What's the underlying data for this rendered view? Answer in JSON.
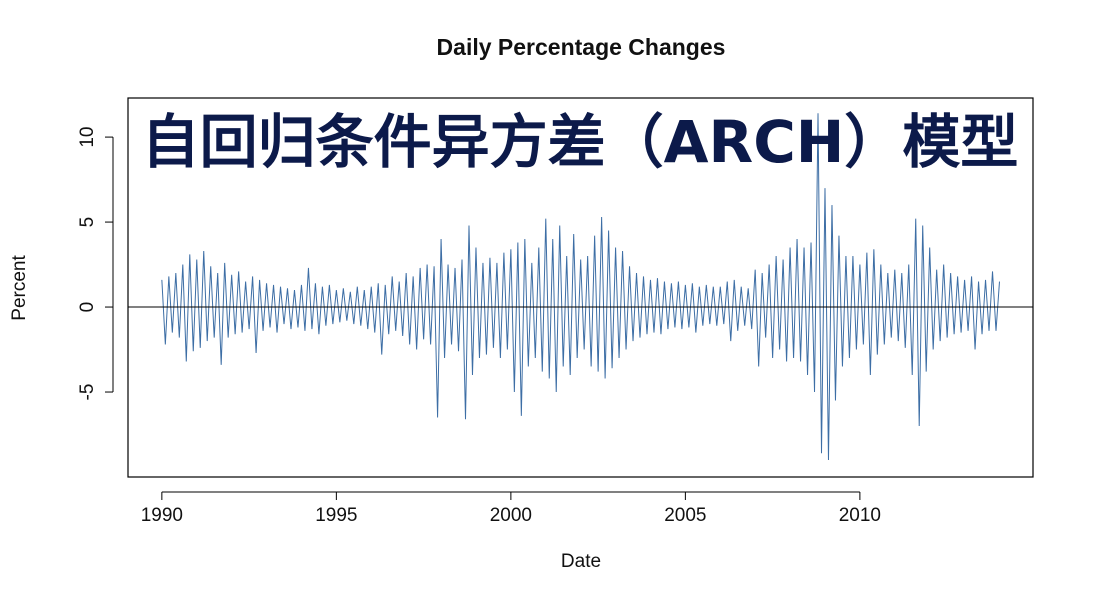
{
  "chart_data": {
    "type": "line",
    "title": "Daily Percentage Changes",
    "overlay_title": "自回归条件异方差（ARCH）模型",
    "x_label": "Date",
    "y_label": "Percent",
    "xlim": [
      1989.03,
      2014.96
    ],
    "ylim": [
      -10,
      12.3
    ],
    "xticks": [
      1990,
      1995,
      2000,
      2005,
      2010
    ],
    "yticks": [
      -5,
      0,
      5,
      10
    ],
    "zero_line": true,
    "series": [
      {
        "color": "#3d6ea5",
        "x": [
          1990,
          1990.1,
          1990.2,
          1990.3,
          1990.4,
          1990.5,
          1990.6,
          1990.7,
          1990.8,
          1990.9,
          1991,
          1991.1,
          1991.2,
          1991.3,
          1991.4,
          1991.5,
          1991.6,
          1991.7,
          1991.8,
          1991.9,
          1992,
          1992.1,
          1992.2,
          1992.3,
          1992.4,
          1992.5,
          1992.6,
          1992.7,
          1992.8,
          1992.9,
          1993,
          1993.1,
          1993.2,
          1993.3,
          1993.4,
          1993.5,
          1993.6,
          1993.7,
          1993.8,
          1993.9,
          1994,
          1994.1,
          1994.2,
          1994.3,
          1994.4,
          1994.5,
          1994.6,
          1994.7,
          1994.8,
          1994.9,
          1995,
          1995.1,
          1995.2,
          1995.3,
          1995.4,
          1995.5,
          1995.6,
          1995.7,
          1995.8,
          1995.9,
          1996,
          1996.1,
          1996.2,
          1996.3,
          1996.4,
          1996.5,
          1996.6,
          1996.7,
          1996.8,
          1996.9,
          1997,
          1997.1,
          1997.2,
          1997.3,
          1997.4,
          1997.5,
          1997.6,
          1997.7,
          1997.8,
          1997.9,
          1998,
          1998.1,
          1998.2,
          1998.3,
          1998.4,
          1998.5,
          1998.6,
          1998.7,
          1998.8,
          1998.9,
          1999,
          1999.1,
          1999.2,
          1999.3,
          1999.4,
          1999.5,
          1999.6,
          1999.7,
          1999.8,
          1999.9,
          2000,
          2000.1,
          2000.2,
          2000.3,
          2000.4,
          2000.5,
          2000.6,
          2000.7,
          2000.8,
          2000.9,
          2001,
          2001.1,
          2001.2,
          2001.3,
          2001.4,
          2001.5,
          2001.6,
          2001.7,
          2001.8,
          2001.9,
          2002,
          2002.1,
          2002.2,
          2002.3,
          2002.4,
          2002.5,
          2002.6,
          2002.7,
          2002.8,
          2002.9,
          2003,
          2003.1,
          2003.2,
          2003.3,
          2003.4,
          2003.5,
          2003.6,
          2003.7,
          2003.8,
          2003.9,
          2004,
          2004.1,
          2004.2,
          2004.3,
          2004.4,
          2004.5,
          2004.6,
          2004.7,
          2004.8,
          2004.9,
          2005,
          2005.1,
          2005.2,
          2005.3,
          2005.4,
          2005.5,
          2005.6,
          2005.7,
          2005.8,
          2005.9,
          2006,
          2006.1,
          2006.2,
          2006.3,
          2006.4,
          2006.5,
          2006.6,
          2006.7,
          2006.8,
          2006.9,
          2007,
          2007.1,
          2007.2,
          2007.3,
          2007.4,
          2007.5,
          2007.6,
          2007.7,
          2007.8,
          2007.9,
          2008,
          2008.1,
          2008.2,
          2008.3,
          2008.4,
          2008.5,
          2008.6,
          2008.7,
          2008.8,
          2008.9,
          2009,
          2009.1,
          2009.2,
          2009.3,
          2009.4,
          2009.5,
          2009.6,
          2009.7,
          2009.8,
          2009.9,
          2010,
          2010.1,
          2010.2,
          2010.3,
          2010.4,
          2010.5,
          2010.6,
          2010.7,
          2010.8,
          2010.9,
          2011,
          2011.1,
          2011.2,
          2011.3,
          2011.4,
          2011.5,
          2011.6,
          2011.7,
          2011.8,
          2011.9,
          2012,
          2012.1,
          2012.2,
          2012.3,
          2012.4,
          2012.5,
          2012.6,
          2012.7,
          2012.8,
          2012.9,
          2013,
          2013.1,
          2013.2,
          2013.3,
          2013.4,
          2013.5,
          2013.6,
          2013.7,
          2013.8,
          2013.9,
          2014
        ],
        "values": [
          1.6,
          -2.2,
          1.8,
          -1.5,
          2.0,
          -1.8,
          2.5,
          -3.2,
          3.1,
          -2.6,
          2.8,
          -2.4,
          3.3,
          -2.0,
          2.4,
          -1.8,
          2.0,
          -3.4,
          2.6,
          -1.8,
          1.9,
          -1.6,
          2.1,
          -1.5,
          1.5,
          -1.3,
          1.8,
          -2.7,
          1.6,
          -1.4,
          1.4,
          -1.2,
          1.3,
          -1.5,
          1.2,
          -1.0,
          1.1,
          -1.3,
          1.0,
          -1.2,
          1.3,
          -1.4,
          2.3,
          -1.3,
          1.4,
          -1.6,
          1.2,
          -1.1,
          1.3,
          -1.0,
          1.0,
          -0.9,
          1.1,
          -0.8,
          0.9,
          -1.0,
          1.2,
          -1.1,
          1.0,
          -1.3,
          1.2,
          -1.5,
          1.4,
          -2.8,
          1.3,
          -1.6,
          1.8,
          -1.4,
          1.5,
          -1.7,
          2.0,
          -2.2,
          1.8,
          -2.5,
          2.3,
          -1.9,
          2.5,
          -2.2,
          2.4,
          -6.5,
          4.0,
          -3.0,
          2.5,
          -2.2,
          2.3,
          -2.6,
          2.8,
          -6.6,
          4.8,
          -4.0,
          3.5,
          -3.0,
          2.6,
          -2.8,
          2.9,
          -2.4,
          2.6,
          -3.0,
          3.2,
          -2.5,
          3.4,
          -5.0,
          3.8,
          -6.4,
          4.0,
          -3.5,
          2.6,
          -3.0,
          3.5,
          -3.8,
          5.2,
          -4.2,
          4.0,
          -5.0,
          4.8,
          -3.5,
          3.0,
          -4.0,
          4.3,
          -3.0,
          2.8,
          -2.5,
          3.0,
          -3.5,
          4.2,
          -3.8,
          5.3,
          -4.2,
          4.5,
          -3.6,
          3.5,
          -3.0,
          3.3,
          -2.5,
          2.4,
          -2.0,
          2.0,
          -1.8,
          1.8,
          -1.6,
          1.6,
          -1.5,
          1.7,
          -1.6,
          1.5,
          -1.3,
          1.4,
          -1.2,
          1.5,
          -1.3,
          1.3,
          -1.2,
          1.4,
          -1.5,
          1.2,
          -1.1,
          1.3,
          -1.0,
          1.2,
          -1.1,
          1.2,
          -1.0,
          1.5,
          -2.0,
          1.6,
          -1.4,
          1.2,
          -1.1,
          1.1,
          -1.3,
          2.2,
          -3.5,
          2.0,
          -1.8,
          2.5,
          -3.0,
          3.0,
          -2.5,
          2.8,
          -3.2,
          3.5,
          -3.0,
          4.0,
          -3.2,
          3.5,
          -4.0,
          3.8,
          -5.0,
          11.4,
          -8.6,
          7.0,
          -9.0,
          6.0,
          -5.5,
          4.2,
          -3.5,
          3.0,
          -3.0,
          3.0,
          -2.5,
          2.5,
          -2.2,
          3.2,
          -4.0,
          3.4,
          -2.8,
          2.5,
          -2.2,
          2.0,
          -1.8,
          2.2,
          -2.0,
          2.0,
          -2.4,
          2.5,
          -4.0,
          5.2,
          -7.0,
          4.8,
          -3.8,
          3.5,
          -2.5,
          2.2,
          -2.0,
          2.5,
          -1.8,
          2.0,
          -1.6,
          1.8,
          -1.5,
          1.6,
          -1.4,
          1.8,
          -2.5,
          1.5,
          -1.6,
          1.6,
          -1.4,
          2.1,
          -1.4,
          1.5
        ]
      }
    ]
  }
}
